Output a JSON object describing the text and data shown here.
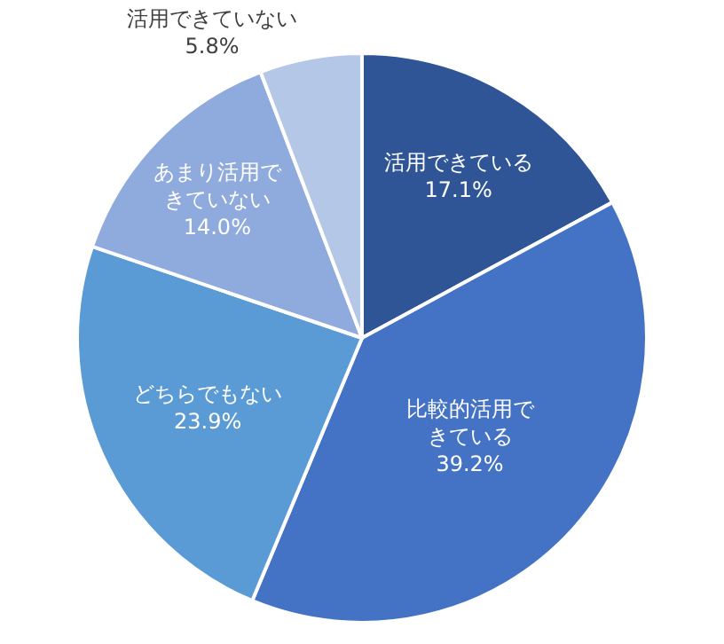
{
  "chart_data": {
    "type": "pie",
    "categories": [
      "活用できている",
      "比較的活用できている",
      "どちらでもない",
      "あまり活用できていない",
      "活用できていない"
    ],
    "values": [
      17.1,
      39.2,
      23.9,
      14.0,
      5.8
    ],
    "value_labels": [
      "17.1%",
      "39.2%",
      "23.9%",
      "14.0%",
      "5.8%"
    ],
    "colors": [
      "#2f5597",
      "#4472c4",
      "#5b9bd5",
      "#8faadc",
      "#b4c7e7"
    ],
    "legend": false
  }
}
